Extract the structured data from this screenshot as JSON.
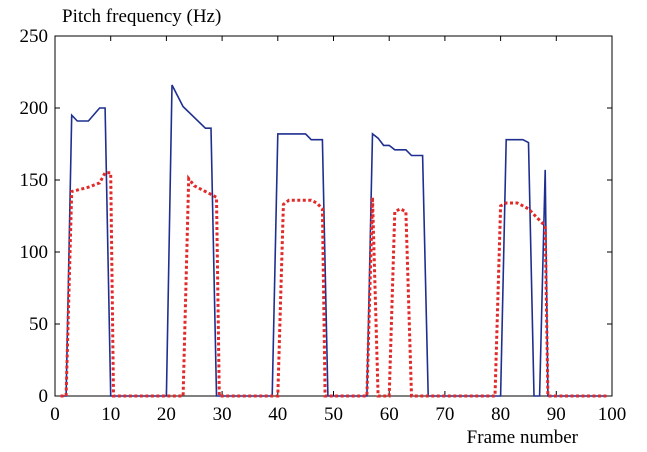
{
  "chart_data": {
    "type": "line",
    "title": "",
    "xlabel": "Frame number",
    "ylabel": "Pitch frequency (Hz)",
    "xlim": [
      0,
      100
    ],
    "ylim": [
      0,
      250
    ],
    "xticks": [
      0,
      10,
      20,
      30,
      40,
      50,
      60,
      70,
      80,
      90,
      100
    ],
    "yticks": [
      0,
      50,
      100,
      150,
      200,
      250
    ],
    "grid": false,
    "legend": "none",
    "series": [
      {
        "color": "#1f2f8f",
        "style": "solid",
        "points": [
          [
            1,
            0
          ],
          [
            2,
            0
          ],
          [
            3,
            195
          ],
          [
            4,
            191
          ],
          [
            6,
            191
          ],
          [
            8,
            200
          ],
          [
            9,
            200
          ],
          [
            10,
            0
          ],
          [
            20,
            0
          ],
          [
            21,
            216
          ],
          [
            23,
            201
          ],
          [
            27,
            186
          ],
          [
            28,
            186
          ],
          [
            29,
            0
          ],
          [
            39,
            0
          ],
          [
            40,
            182
          ],
          [
            45,
            182
          ],
          [
            46,
            178
          ],
          [
            48,
            178
          ],
          [
            49,
            0
          ],
          [
            56,
            0
          ],
          [
            57,
            182
          ],
          [
            58,
            179
          ],
          [
            59,
            174
          ],
          [
            60,
            174
          ],
          [
            61,
            171
          ],
          [
            63,
            171
          ],
          [
            64,
            167
          ],
          [
            66,
            167
          ],
          [
            67,
            0
          ],
          [
            80,
            0
          ],
          [
            81,
            178
          ],
          [
            84,
            178
          ],
          [
            85,
            176
          ],
          [
            86,
            0
          ],
          [
            87,
            0
          ],
          [
            88,
            157
          ],
          [
            88.5,
            0
          ],
          [
            99,
            0
          ]
        ]
      },
      {
        "color": "#e32a2a",
        "style": "dotted",
        "points": [
          [
            1,
            0
          ],
          [
            2,
            0
          ],
          [
            3,
            142
          ],
          [
            4,
            143
          ],
          [
            6,
            145
          ],
          [
            8,
            148
          ],
          [
            9,
            155
          ],
          [
            10,
            155
          ],
          [
            10.5,
            0
          ],
          [
            23,
            0
          ],
          [
            24,
            151
          ],
          [
            25,
            146
          ],
          [
            27,
            142
          ],
          [
            29,
            138
          ],
          [
            29.5,
            0
          ],
          [
            40,
            0
          ],
          [
            41,
            133
          ],
          [
            42,
            136
          ],
          [
            46,
            136
          ],
          [
            47,
            134
          ],
          [
            48,
            130
          ],
          [
            48.5,
            0
          ],
          [
            56,
            0
          ],
          [
            57,
            138
          ],
          [
            58,
            0
          ],
          [
            60,
            0
          ],
          [
            61,
            128
          ],
          [
            62,
            130
          ],
          [
            63,
            128
          ],
          [
            64,
            0
          ],
          [
            79,
            0
          ],
          [
            80,
            132
          ],
          [
            81,
            134
          ],
          [
            83,
            134
          ],
          [
            85,
            130
          ],
          [
            86,
            126
          ],
          [
            87,
            122
          ],
          [
            88,
            118
          ],
          [
            88.5,
            0
          ],
          [
            99,
            0
          ]
        ]
      }
    ]
  }
}
